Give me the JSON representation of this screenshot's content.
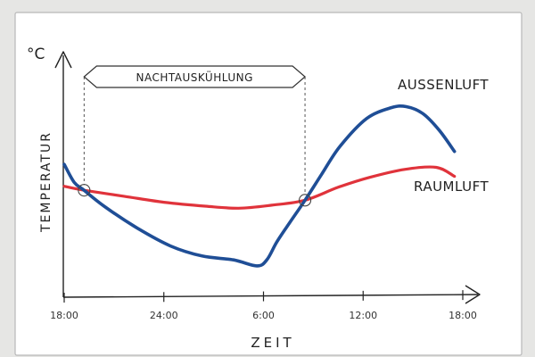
{
  "chart_data": {
    "type": "line",
    "unit": "°C",
    "ylabel": "TEMPERATUR",
    "xlabel": "ZEIT",
    "x_ticks": [
      "18:00",
      "24:00",
      "6:00",
      "12:00",
      "18:00"
    ],
    "x_range": [
      0,
      24
    ],
    "y_range": [
      0,
      10
    ],
    "annotation": {
      "label": "NACHTAUSKÜHLUNG",
      "x_start": 1.2,
      "x_end": 14.5
    },
    "crossings": [
      {
        "x": 1.2,
        "y": 4.7
      },
      {
        "x": 14.5,
        "y": 4.2
      }
    ],
    "series": [
      {
        "name": "AUSSENLUFT",
        "color": "#1f4e96",
        "x": [
          0,
          0.6,
          1.2,
          2.4,
          4.4,
          6.4,
          8.3,
          10.2,
          11.6,
          12.2,
          12.8,
          13.6,
          14.5,
          15.5,
          16.6,
          18.2,
          19.7,
          20.6,
          21.6,
          22.6,
          23.5
        ],
        "y": [
          6.0,
          5.1,
          4.7,
          3.9,
          2.8,
          1.9,
          1.4,
          1.2,
          0.9,
          1.2,
          2.1,
          3.1,
          4.2,
          5.5,
          6.9,
          8.3,
          8.85,
          8.9,
          8.55,
          7.7,
          6.65
        ]
      },
      {
        "name": "RAUMLUFT",
        "color": "#e0333b",
        "x": [
          0,
          1.2,
          3.6,
          6.0,
          8.5,
          10.5,
          12.5,
          14.5,
          16.5,
          18.4,
          20.5,
          22.4,
          23.5
        ],
        "y": [
          4.9,
          4.7,
          4.4,
          4.1,
          3.9,
          3.8,
          3.95,
          4.2,
          4.85,
          5.35,
          5.75,
          5.85,
          5.4
        ]
      }
    ]
  }
}
